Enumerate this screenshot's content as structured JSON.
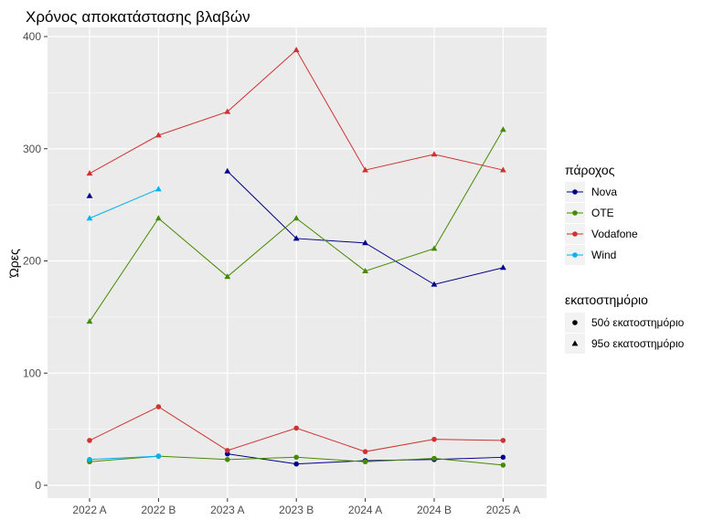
{
  "chart_data": {
    "type": "line",
    "title": "Χρόνος αποκατάστασης βλαβών",
    "xlabel": "",
    "ylabel": "Ώρες",
    "categories": [
      "2022 A",
      "2022 B",
      "2023 A",
      "2023 B",
      "2024 A",
      "2024 B",
      "2025 A"
    ],
    "ylim": [
      0,
      420
    ],
    "yticks": [
      0,
      100,
      200,
      300,
      400
    ],
    "grid": true,
    "legend_placement": "right",
    "color_legend": {
      "title": "πάροχος",
      "entries": [
        {
          "name": "Nova",
          "color": "#00008B"
        },
        {
          "name": "OTE",
          "color": "#458B00"
        },
        {
          "name": "Vodafone",
          "color": "#CD3333"
        },
        {
          "name": "Wind",
          "color": "#00B2EE"
        }
      ]
    },
    "shape_legend": {
      "title": "εκατοστημόριο",
      "entries": [
        {
          "name": "50ό εκατοστημόριο",
          "shape": "circle"
        },
        {
          "name": "95ο εκατοστημόριο",
          "shape": "triangle"
        }
      ]
    },
    "series": [
      {
        "name": "Nova",
        "percentile": "50ό εκατοστημόριο",
        "values": [
          22,
          null,
          28,
          19,
          22,
          23,
          25
        ]
      },
      {
        "name": "Nova",
        "percentile": "95ο εκατοστημόριο",
        "values": [
          258,
          null,
          280,
          220,
          216,
          179,
          194
        ]
      },
      {
        "name": "OTE",
        "percentile": "50ό εκατοστημόριο",
        "values": [
          21,
          26,
          23,
          25,
          21,
          24,
          18
        ]
      },
      {
        "name": "OTE",
        "percentile": "95ο εκατοστημόριο",
        "values": [
          146,
          238,
          186,
          238,
          191,
          211,
          317
        ]
      },
      {
        "name": "Vodafone",
        "percentile": "50ό εκατοστημόριο",
        "values": [
          40,
          70,
          31,
          51,
          30,
          41,
          40
        ]
      },
      {
        "name": "Vodafone",
        "percentile": "95ο εκατοστημόριο",
        "values": [
          278,
          312,
          333,
          388,
          281,
          295,
          281
        ]
      },
      {
        "name": "Wind",
        "percentile": "50ό εκατοστημόριο",
        "values": [
          23,
          26,
          null,
          null,
          null,
          null,
          null
        ]
      },
      {
        "name": "Wind",
        "percentile": "95ο εκατοστημόριο",
        "values": [
          238,
          264,
          null,
          null,
          null,
          null,
          null
        ]
      }
    ]
  }
}
